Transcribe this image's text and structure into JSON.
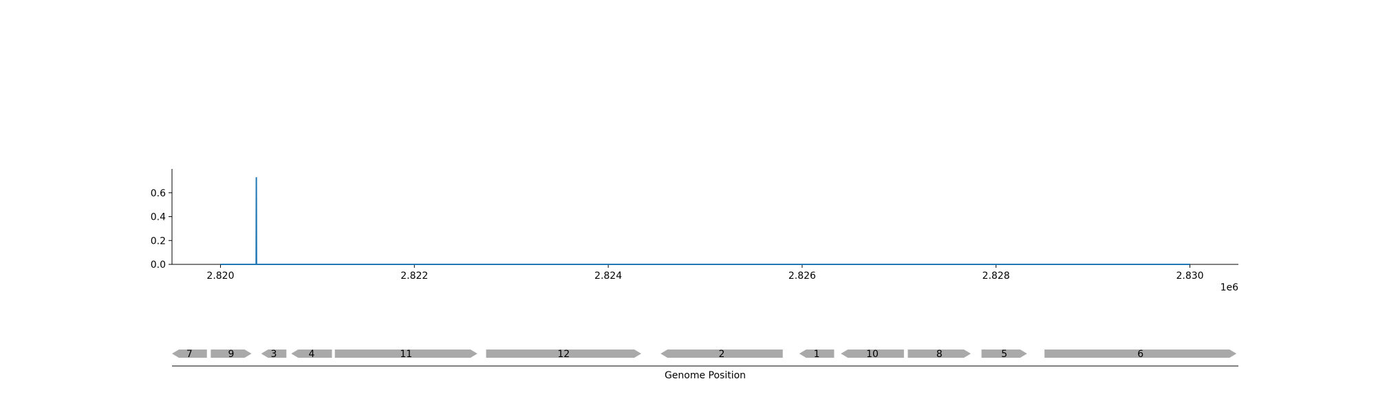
{
  "chart_data": {
    "type": "line",
    "xlim": [
      2819500,
      2830500
    ],
    "ylim": [
      0,
      0.8
    ],
    "x_ticks": [
      2820000,
      2822000,
      2824000,
      2826000,
      2828000,
      2830000
    ],
    "x_tick_labels": [
      "2.820",
      "2.822",
      "2.824",
      "2.826",
      "2.828",
      "2.830"
    ],
    "x_offset_label": "1e6",
    "y_ticks": [
      0,
      0.2,
      0.4,
      0.6
    ],
    "y_tick_labels": [
      "0.0",
      "0.2",
      "0.4",
      "0.6"
    ],
    "series": [
      {
        "color": "#1f77b4",
        "x": [
          2820000,
          2820368,
          2820370,
          2820372,
          2830000
        ],
        "y": [
          0,
          0,
          0.73,
          0,
          0
        ]
      }
    ],
    "grid": false,
    "genes_xlabel": "Genome Position",
    "genes": [
      {
        "label": "7",
        "start": 2819500,
        "end": 2819860,
        "strand": "-"
      },
      {
        "label": "9",
        "start": 2819900,
        "end": 2820320,
        "strand": "+"
      },
      {
        "label": "3",
        "start": 2820420,
        "end": 2820680,
        "strand": "-"
      },
      {
        "label": "4",
        "start": 2820730,
        "end": 2821150,
        "strand": "-"
      },
      {
        "label": "11",
        "start": 2821180,
        "end": 2822650,
        "strand": "+"
      },
      {
        "label": "12",
        "start": 2822740,
        "end": 2824340,
        "strand": "+"
      },
      {
        "label": "2",
        "start": 2824540,
        "end": 2825800,
        "strand": "-"
      },
      {
        "label": "1",
        "start": 2825970,
        "end": 2826330,
        "strand": "-"
      },
      {
        "label": "10",
        "start": 2826400,
        "end": 2827050,
        "strand": "-"
      },
      {
        "label": "8",
        "start": 2827090,
        "end": 2827740,
        "strand": "+"
      },
      {
        "label": "5",
        "start": 2827850,
        "end": 2828320,
        "strand": "+"
      },
      {
        "label": "6",
        "start": 2828500,
        "end": 2830480,
        "strand": "+"
      }
    ],
    "gene_color": "#a9a9a9"
  }
}
